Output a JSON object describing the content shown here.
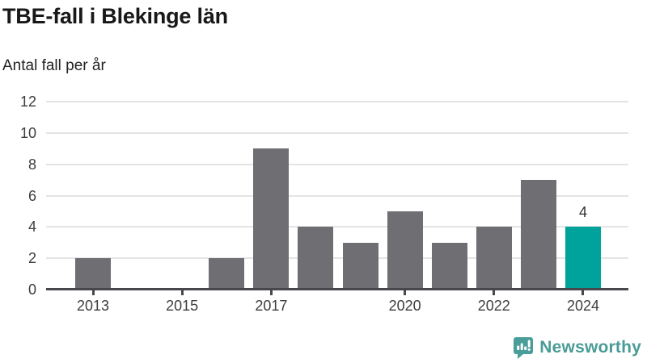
{
  "header": {
    "title": "TBE-fall i Blekinge län",
    "subtitle": "Antal fall per år"
  },
  "chart_data": {
    "type": "bar",
    "title": "TBE-fall i Blekinge län",
    "ylabel": "Antal fall per år",
    "xlabel": "",
    "categories": [
      "2013",
      "2014",
      "2015",
      "2016",
      "2017",
      "2018",
      "2019",
      "2020",
      "2021",
      "2022",
      "2023",
      "2024"
    ],
    "values": [
      2,
      0,
      0,
      2,
      9,
      4,
      3,
      5,
      3,
      4,
      7,
      4
    ],
    "highlight": {
      "category": "2024",
      "index": 11,
      "label": "4",
      "color": "#00a39b"
    },
    "bar_color": "#6e6e73",
    "x_tick_labels": [
      "2013",
      "2015",
      "2017",
      "2020",
      "2022",
      "2024"
    ],
    "y_ticks": [
      0,
      2,
      4,
      6,
      8,
      10,
      12
    ],
    "ylim": [
      0,
      12
    ],
    "grid": true,
    "gridline_color": "#e4e4e4",
    "axis_color": "#47474c",
    "legend": "none"
  },
  "footer": {
    "brand": "Newsworthy",
    "brand_color": "#4a9b96",
    "logo_icon": "bar-chart-speech-bubble"
  }
}
